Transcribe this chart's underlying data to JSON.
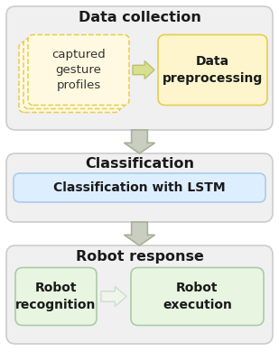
{
  "bg_color": "#ffffff",
  "section1": {
    "title": "Data collection",
    "bg_color": "#f0f0f0",
    "border_color": "#cccccc",
    "box1_label": "captured\ngesture\nprofiles",
    "box1_fill": "#fef9e0",
    "box1_border": "#e8cc50",
    "box2_label": "Data\npreprocessing",
    "box2_fill": "#fef5cc",
    "box2_border": "#e8cc50"
  },
  "section2": {
    "title": "Classification",
    "bg_color": "#f0f0f0",
    "border_color": "#cccccc",
    "inner_label": "Classification with LSTM",
    "inner_fill": "#ddeeff",
    "inner_border": "#aaccee"
  },
  "section3": {
    "title": "Robot response",
    "bg_color": "#f0f0f0",
    "border_color": "#cccccc",
    "box1_label": "Robot\nrecognition",
    "box1_fill": "#e8f5e0",
    "box1_border": "#aaccaa",
    "box2_label": "Robot\nexecution",
    "box2_fill": "#e8f5e0",
    "box2_border": "#aaccaa"
  },
  "down_arrow_fill": "#c8cfc0",
  "down_arrow_edge": "#a8b098",
  "right_arrow_fill_yellow": "#d8e090",
  "right_arrow_edge_yellow": "#b8c070",
  "right_arrow_fill_green": "#f0f5ec",
  "right_arrow_edge_green": "#ccddcc",
  "title_fontsize": 11.5,
  "label_fontsize": 9.5
}
